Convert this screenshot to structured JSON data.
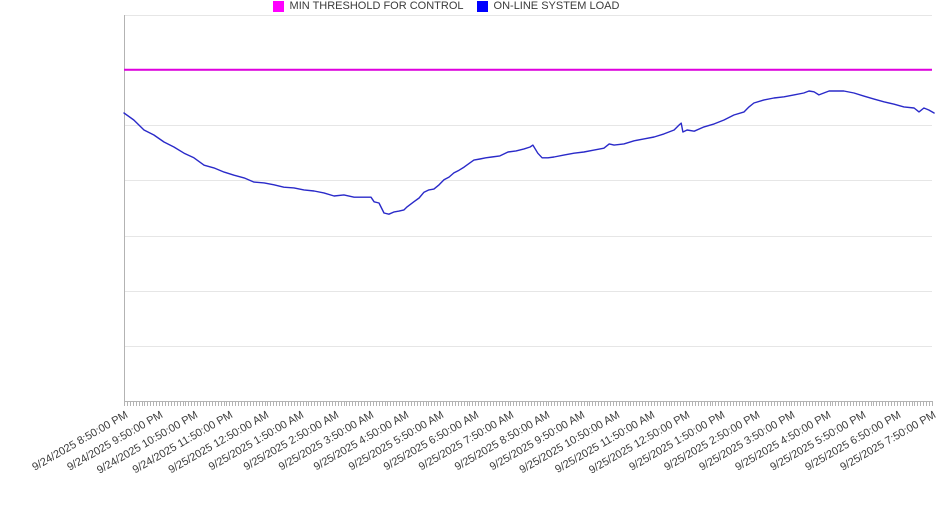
{
  "legend": {
    "items": [
      {
        "label": "MIN THRESHOLD FOR CONTROL",
        "swatch_color": "#ff00ff"
      },
      {
        "label": "ON-LINE SYSTEM LOAD",
        "swatch_color": "#0000ff"
      }
    ],
    "position": "bottom-center"
  },
  "colors": {
    "threshold_line": "#e000e0",
    "load_line": "#2a2ac9",
    "gridline": "#e6e6e6",
    "axis": "#b3b3b3",
    "tick": "#b3b3b3",
    "label_text": "#3b3b3b",
    "background": "#ffffff"
  },
  "chart_data": {
    "type": "line",
    "title": "",
    "xlabel": "",
    "ylabel": "",
    "y_axis_labels_visible": false,
    "y_scale_note": "y axis has no tick labels; values below are percent of plot height (0 = bottom gridline, 100 = top gridline), estimated from pixels",
    "ylim": [
      0,
      100
    ],
    "horizontal_gridline_count": 8,
    "x_minor_tick_minutes": 5,
    "x_major_tick_hours": 1,
    "x_range_hours": [
      0,
      23.06
    ],
    "x_tick_labels": [
      "9/24/2025 8:50:00 PM",
      "9/24/2025 9:50:00 PM",
      "9/24/2025 10:50:00 PM",
      "9/24/2025 11:50:00 PM",
      "9/25/2025 12:50:00 AM",
      "9/25/2025 1:50:00 AM",
      "9/25/2025 2:50:00 AM",
      "9/25/2025 3:50:00 AM",
      "9/25/2025 4:50:00 AM",
      "9/25/2025 5:50:00 AM",
      "9/25/2025 6:50:00 AM",
      "9/25/2025 7:50:00 AM",
      "9/25/2025 8:50:00 AM",
      "9/25/2025 9:50:00 AM",
      "9/25/2025 10:50:00 AM",
      "9/25/2025 11:50:00 AM",
      "9/25/2025 12:50:00 PM",
      "9/25/2025 1:50:00 PM",
      "9/25/2025 2:50:00 PM",
      "9/25/2025 3:50:00 PM",
      "9/25/2025 4:50:00 PM",
      "9/25/2025 5:50:00 PM",
      "9/25/2025 6:50:00 PM",
      "9/25/2025 7:50:00 PM"
    ],
    "legend_position": "bottom",
    "series": [
      {
        "name": "MIN THRESHOLD FOR CONTROL",
        "type": "hline",
        "color": "#e000e0",
        "value": 85.8
      },
      {
        "name": "ON-LINE SYSTEM LOAD",
        "type": "line",
        "color": "#2a2ac9",
        "points": [
          [
            0.0,
            74.6
          ],
          [
            0.28,
            72.8
          ],
          [
            0.57,
            70.2
          ],
          [
            0.85,
            68.9
          ],
          [
            1.14,
            67.1
          ],
          [
            1.42,
            65.8
          ],
          [
            1.71,
            64.2
          ],
          [
            1.99,
            63.0
          ],
          [
            2.28,
            61.1
          ],
          [
            2.56,
            60.4
          ],
          [
            2.85,
            59.3
          ],
          [
            3.13,
            58.5
          ],
          [
            3.42,
            57.8
          ],
          [
            3.7,
            56.7
          ],
          [
            3.99,
            56.5
          ],
          [
            4.27,
            56.0
          ],
          [
            4.55,
            55.4
          ],
          [
            4.84,
            55.2
          ],
          [
            5.12,
            54.7
          ],
          [
            5.41,
            54.4
          ],
          [
            5.69,
            53.9
          ],
          [
            5.98,
            53.1
          ],
          [
            6.26,
            53.4
          ],
          [
            6.55,
            52.8
          ],
          [
            6.83,
            52.8
          ],
          [
            7.03,
            52.8
          ],
          [
            7.12,
            51.6
          ],
          [
            7.26,
            51.3
          ],
          [
            7.4,
            48.7
          ],
          [
            7.54,
            48.4
          ],
          [
            7.69,
            49.0
          ],
          [
            7.83,
            49.2
          ],
          [
            7.97,
            49.5
          ],
          [
            8.06,
            50.3
          ],
          [
            8.25,
            51.6
          ],
          [
            8.4,
            52.6
          ],
          [
            8.54,
            54.1
          ],
          [
            8.68,
            54.7
          ],
          [
            8.82,
            54.9
          ],
          [
            8.97,
            56.0
          ],
          [
            9.11,
            57.3
          ],
          [
            9.25,
            58.0
          ],
          [
            9.39,
            59.1
          ],
          [
            9.54,
            59.8
          ],
          [
            9.68,
            60.6
          ],
          [
            9.85,
            61.7
          ],
          [
            9.96,
            62.4
          ],
          [
            10.13,
            62.7
          ],
          [
            10.3,
            63.0
          ],
          [
            10.47,
            63.2
          ],
          [
            10.7,
            63.5
          ],
          [
            10.93,
            64.5
          ],
          [
            11.16,
            64.8
          ],
          [
            11.39,
            65.3
          ],
          [
            11.56,
            65.8
          ],
          [
            11.64,
            66.3
          ],
          [
            11.78,
            64.2
          ],
          [
            11.9,
            63.0
          ],
          [
            12.07,
            63.0
          ],
          [
            12.24,
            63.2
          ],
          [
            12.52,
            63.7
          ],
          [
            12.81,
            64.2
          ],
          [
            13.09,
            64.5
          ],
          [
            13.38,
            65.0
          ],
          [
            13.66,
            65.5
          ],
          [
            13.81,
            66.6
          ],
          [
            13.95,
            66.3
          ],
          [
            14.23,
            66.6
          ],
          [
            14.52,
            67.4
          ],
          [
            14.8,
            67.9
          ],
          [
            15.09,
            68.4
          ],
          [
            15.37,
            69.2
          ],
          [
            15.66,
            70.2
          ],
          [
            15.8,
            71.5
          ],
          [
            15.86,
            72.0
          ],
          [
            15.91,
            69.7
          ],
          [
            16.03,
            70.2
          ],
          [
            16.23,
            69.9
          ],
          [
            16.51,
            71.0
          ],
          [
            16.8,
            71.8
          ],
          [
            17.08,
            72.8
          ],
          [
            17.36,
            74.1
          ],
          [
            17.65,
            74.9
          ],
          [
            17.79,
            76.2
          ],
          [
            17.93,
            77.2
          ],
          [
            18.22,
            78.0
          ],
          [
            18.5,
            78.5
          ],
          [
            18.79,
            78.8
          ],
          [
            19.07,
            79.3
          ],
          [
            19.35,
            79.8
          ],
          [
            19.5,
            80.3
          ],
          [
            19.64,
            80.1
          ],
          [
            19.78,
            79.3
          ],
          [
            19.92,
            79.8
          ],
          [
            20.07,
            80.3
          ],
          [
            20.21,
            80.3
          ],
          [
            20.49,
            80.3
          ],
          [
            20.78,
            79.8
          ],
          [
            21.06,
            79.0
          ],
          [
            21.35,
            78.2
          ],
          [
            21.63,
            77.5
          ],
          [
            21.92,
            76.9
          ],
          [
            22.2,
            76.2
          ],
          [
            22.49,
            75.9
          ],
          [
            22.63,
            74.9
          ],
          [
            22.77,
            75.9
          ],
          [
            22.91,
            75.4
          ],
          [
            23.06,
            74.6
          ]
        ]
      }
    ]
  }
}
